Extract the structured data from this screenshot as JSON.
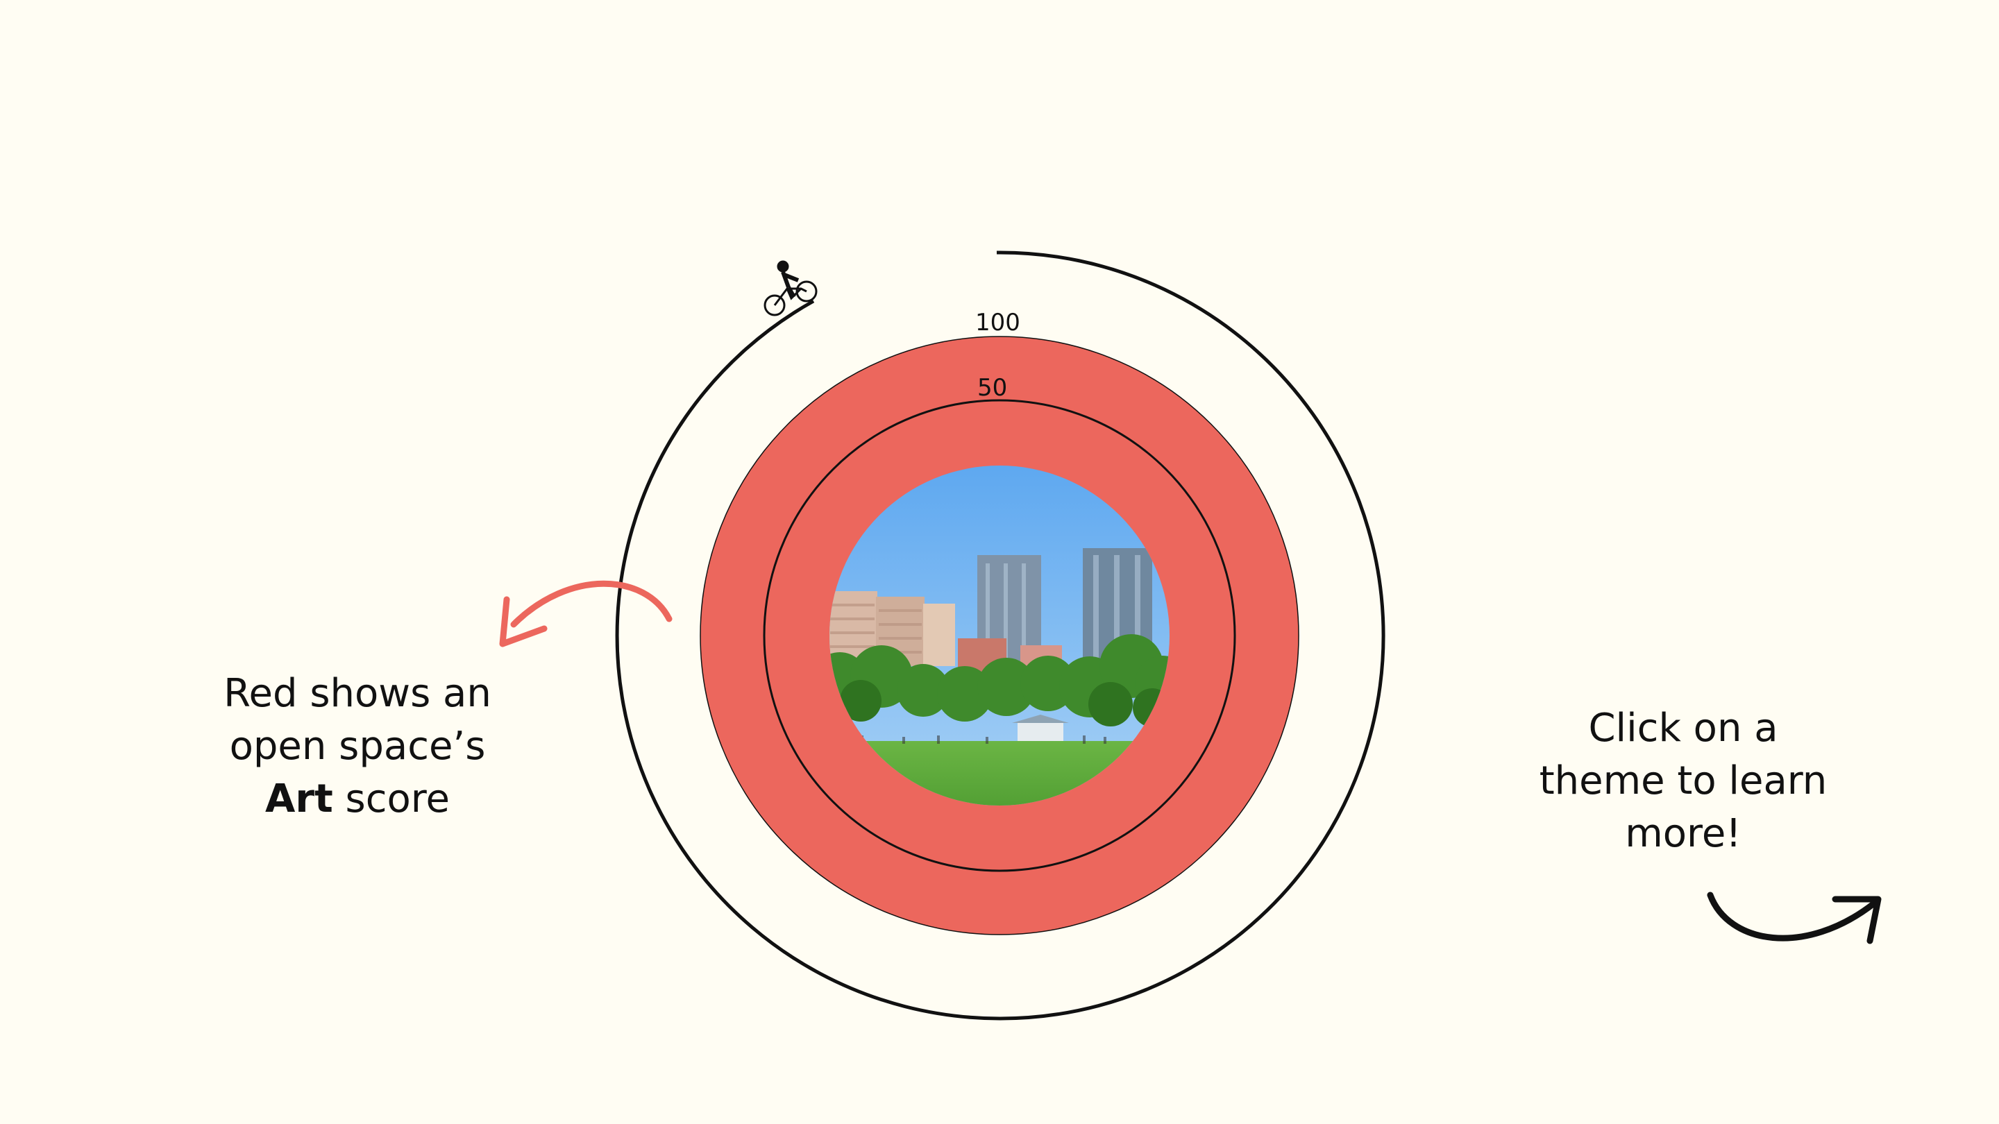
{
  "score": {
    "theme": "Art",
    "value": 100,
    "scale_labels": [
      "100",
      "50"
    ]
  },
  "left_caption": {
    "line1": "Red shows an",
    "line2": "open space’s",
    "line3_bold": "Art",
    "line3_rest": " score"
  },
  "right_caption": {
    "line1": "Click on a",
    "line2": "theme to learn",
    "line3": "more!"
  },
  "colors": {
    "background": "#fffdf3",
    "score_fill": "#ec675d",
    "ink": "#111111",
    "sky": "#79b7f0",
    "grass": "#5aa83a"
  },
  "icons": {
    "cyclist": "cyclist-icon",
    "left_arrow": "curved-arrow-left-icon",
    "right_arrow": "curved-arrow-right-icon",
    "park_photo": "city-park-photo"
  }
}
